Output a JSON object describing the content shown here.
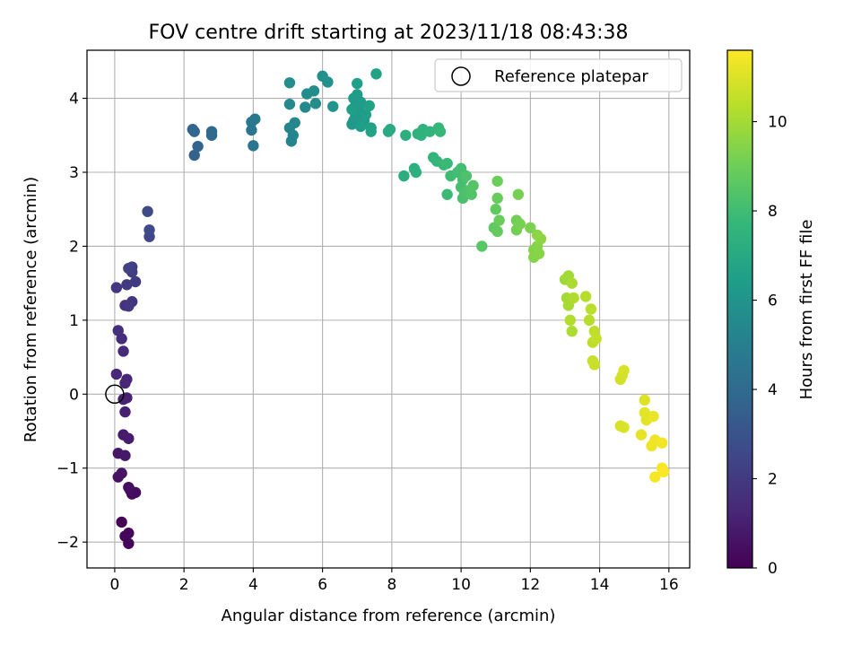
{
  "chart_data": {
    "type": "scatter",
    "title": "FOV centre drift starting at 2023/11/18 08:43:38",
    "xlabel": "Angular distance from reference (arcmin)",
    "ylabel": "Rotation from reference (arcmin)",
    "xlim": [
      -0.8,
      16.6
    ],
    "ylim": [
      -2.35,
      4.65
    ],
    "xticks": [
      0,
      2,
      4,
      6,
      8,
      10,
      12,
      14,
      16
    ],
    "yticks": [
      -2,
      -1,
      0,
      1,
      2,
      3,
      4
    ],
    "grid": true,
    "legend": {
      "placement": "top-right",
      "entries": [
        "Reference platepar"
      ]
    },
    "reference_point": {
      "x": 0,
      "y": 0
    },
    "colorbar": {
      "label": "Hours from first FF file",
      "range": [
        0,
        11.6
      ],
      "ticks": [
        0,
        2,
        4,
        6,
        8,
        10
      ],
      "colormap": [
        "#440154",
        "#482878",
        "#3e4989",
        "#31688e",
        "#26828e",
        "#1f9e89",
        "#35b779",
        "#6ece58",
        "#b5de2b",
        "#fde725"
      ]
    },
    "series": [
      {
        "points": [
          {
            "x": 0.2,
            "y": -1.73,
            "h": 0.05
          },
          {
            "x": 0.4,
            "y": -2.02,
            "h": 0.1
          },
          {
            "x": 0.3,
            "y": -1.92,
            "h": 0.15
          },
          {
            "x": 0.4,
            "y": -1.88,
            "h": 0.2
          },
          {
            "x": 0.5,
            "y": -1.35,
            "h": 0.3
          },
          {
            "x": 0.6,
            "y": -1.33,
            "h": 0.35
          },
          {
            "x": 0.45,
            "y": -1.3,
            "h": 0.4
          },
          {
            "x": 0.4,
            "y": -1.26,
            "h": 0.45
          },
          {
            "x": 0.1,
            "y": -1.12,
            "h": 0.55
          },
          {
            "x": 0.2,
            "y": -1.07,
            "h": 0.6
          },
          {
            "x": 0.1,
            "y": -0.8,
            "h": 0.7
          },
          {
            "x": 0.3,
            "y": -0.83,
            "h": 0.75
          },
          {
            "x": 0.25,
            "y": -0.55,
            "h": 0.85
          },
          {
            "x": 0.4,
            "y": -0.6,
            "h": 0.9
          },
          {
            "x": 0.3,
            "y": -0.24,
            "h": 1.0
          },
          {
            "x": 0.35,
            "y": -0.05,
            "h": 1.05
          },
          {
            "x": 0.25,
            "y": -0.07,
            "h": 1.1
          },
          {
            "x": 0.3,
            "y": 0.15,
            "h": 1.2
          },
          {
            "x": 0.35,
            "y": 0.2,
            "h": 1.25
          },
          {
            "x": 0.05,
            "y": 0.27,
            "h": 1.3
          },
          {
            "x": 0.25,
            "y": 0.58,
            "h": 1.4
          },
          {
            "x": 0.2,
            "y": 0.75,
            "h": 1.5
          },
          {
            "x": 0.1,
            "y": 0.86,
            "h": 1.55
          },
          {
            "x": 0.3,
            "y": 1.2,
            "h": 1.7
          },
          {
            "x": 0.5,
            "y": 1.25,
            "h": 1.8
          },
          {
            "x": 0.4,
            "y": 1.19,
            "h": 1.85
          },
          {
            "x": 0.05,
            "y": 1.44,
            "h": 1.9
          },
          {
            "x": 0.35,
            "y": 1.48,
            "h": 2.0
          },
          {
            "x": 0.6,
            "y": 1.52,
            "h": 2.05
          },
          {
            "x": 0.5,
            "y": 1.65,
            "h": 2.15
          },
          {
            "x": 0.5,
            "y": 1.72,
            "h": 2.2
          },
          {
            "x": 0.4,
            "y": 1.7,
            "h": 2.25
          },
          {
            "x": 1.0,
            "y": 2.13,
            "h": 2.5
          },
          {
            "x": 1.0,
            "y": 2.22,
            "h": 2.6
          },
          {
            "x": 0.95,
            "y": 2.47,
            "h": 2.7
          },
          {
            "x": 2.3,
            "y": 3.23,
            "h": 3.6
          },
          {
            "x": 2.4,
            "y": 3.35,
            "h": 3.7
          },
          {
            "x": 2.25,
            "y": 3.58,
            "h": 3.75
          },
          {
            "x": 2.3,
            "y": 3.55,
            "h": 3.8
          },
          {
            "x": 2.8,
            "y": 3.5,
            "h": 3.9
          },
          {
            "x": 2.8,
            "y": 3.55,
            "h": 3.95
          },
          {
            "x": 4.0,
            "y": 3.36,
            "h": 4.5
          },
          {
            "x": 3.95,
            "y": 3.57,
            "h": 4.55
          },
          {
            "x": 3.95,
            "y": 3.68,
            "h": 4.6
          },
          {
            "x": 4.05,
            "y": 3.72,
            "h": 4.65
          },
          {
            "x": 5.1,
            "y": 3.42,
            "h": 5.2
          },
          {
            "x": 5.15,
            "y": 3.5,
            "h": 5.25
          },
          {
            "x": 5.05,
            "y": 3.6,
            "h": 5.3
          },
          {
            "x": 5.2,
            "y": 3.67,
            "h": 5.35
          },
          {
            "x": 5.5,
            "y": 3.88,
            "h": 5.5
          },
          {
            "x": 5.05,
            "y": 3.92,
            "h": 5.45
          },
          {
            "x": 5.55,
            "y": 4.06,
            "h": 5.6
          },
          {
            "x": 5.75,
            "y": 4.1,
            "h": 5.65
          },
          {
            "x": 5.8,
            "y": 3.93,
            "h": 5.7
          },
          {
            "x": 5.05,
            "y": 4.21,
            "h": 5.75
          },
          {
            "x": 6.0,
            "y": 4.3,
            "h": 5.8
          },
          {
            "x": 6.15,
            "y": 4.22,
            "h": 5.85
          },
          {
            "x": 6.3,
            "y": 3.89,
            "h": 6.0
          },
          {
            "x": 6.85,
            "y": 3.65,
            "h": 6.2
          },
          {
            "x": 6.9,
            "y": 3.7,
            "h": 6.22
          },
          {
            "x": 6.95,
            "y": 3.75,
            "h": 6.25
          },
          {
            "x": 7.0,
            "y": 3.8,
            "h": 6.27
          },
          {
            "x": 7.05,
            "y": 3.85,
            "h": 6.3
          },
          {
            "x": 6.95,
            "y": 3.9,
            "h": 6.32
          },
          {
            "x": 7.1,
            "y": 3.95,
            "h": 6.35
          },
          {
            "x": 6.9,
            "y": 4.0,
            "h": 6.37
          },
          {
            "x": 7.0,
            "y": 4.05,
            "h": 6.4
          },
          {
            "x": 7.2,
            "y": 3.7,
            "h": 6.42
          },
          {
            "x": 7.1,
            "y": 3.62,
            "h": 6.45
          },
          {
            "x": 7.25,
            "y": 3.78,
            "h": 6.47
          },
          {
            "x": 6.85,
            "y": 3.85,
            "h": 6.5
          },
          {
            "x": 7.0,
            "y": 4.2,
            "h": 6.55
          },
          {
            "x": 7.35,
            "y": 3.9,
            "h": 6.6
          },
          {
            "x": 7.4,
            "y": 3.6,
            "h": 6.62
          },
          {
            "x": 7.4,
            "y": 3.55,
            "h": 6.65
          },
          {
            "x": 7.55,
            "y": 4.33,
            "h": 6.7
          },
          {
            "x": 7.9,
            "y": 3.55,
            "h": 7.0
          },
          {
            "x": 7.95,
            "y": 3.58,
            "h": 7.05
          },
          {
            "x": 8.35,
            "y": 2.95,
            "h": 7.2
          },
          {
            "x": 8.4,
            "y": 3.5,
            "h": 7.25
          },
          {
            "x": 8.65,
            "y": 3.05,
            "h": 7.3
          },
          {
            "x": 8.7,
            "y": 3.0,
            "h": 7.35
          },
          {
            "x": 8.75,
            "y": 3.52,
            "h": 7.4
          },
          {
            "x": 8.85,
            "y": 3.5,
            "h": 7.45
          },
          {
            "x": 8.9,
            "y": 3.58,
            "h": 7.5
          },
          {
            "x": 9.1,
            "y": 3.55,
            "h": 7.55
          },
          {
            "x": 9.2,
            "y": 3.2,
            "h": 7.6
          },
          {
            "x": 9.3,
            "y": 3.15,
            "h": 7.65
          },
          {
            "x": 9.35,
            "y": 3.6,
            "h": 7.7
          },
          {
            "x": 9.4,
            "y": 3.55,
            "h": 7.75
          },
          {
            "x": 9.5,
            "y": 3.1,
            "h": 7.8
          },
          {
            "x": 9.6,
            "y": 3.12,
            "h": 7.85
          },
          {
            "x": 9.6,
            "y": 2.7,
            "h": 7.9
          },
          {
            "x": 9.7,
            "y": 2.95,
            "h": 7.95
          },
          {
            "x": 9.9,
            "y": 3.0,
            "h": 8.0
          },
          {
            "x": 10.0,
            "y": 3.05,
            "h": 8.05
          },
          {
            "x": 10.0,
            "y": 2.8,
            "h": 8.1
          },
          {
            "x": 10.05,
            "y": 2.9,
            "h": 8.15
          },
          {
            "x": 10.05,
            "y": 2.65,
            "h": 8.2
          },
          {
            "x": 10.1,
            "y": 2.72,
            "h": 8.25
          },
          {
            "x": 10.15,
            "y": 2.95,
            "h": 8.3
          },
          {
            "x": 10.2,
            "y": 2.75,
            "h": 8.35
          },
          {
            "x": 10.3,
            "y": 2.7,
            "h": 8.4
          },
          {
            "x": 10.35,
            "y": 2.82,
            "h": 8.45
          },
          {
            "x": 10.6,
            "y": 2.0,
            "h": 8.55
          },
          {
            "x": 10.95,
            "y": 2.25,
            "h": 8.7
          },
          {
            "x": 11.0,
            "y": 2.5,
            "h": 8.75
          },
          {
            "x": 11.05,
            "y": 2.2,
            "h": 8.8
          },
          {
            "x": 11.05,
            "y": 2.65,
            "h": 8.85
          },
          {
            "x": 11.1,
            "y": 2.35,
            "h": 8.9
          },
          {
            "x": 11.05,
            "y": 2.88,
            "h": 8.95
          },
          {
            "x": 11.6,
            "y": 2.35,
            "h": 9.05
          },
          {
            "x": 11.6,
            "y": 2.22,
            "h": 9.1
          },
          {
            "x": 11.65,
            "y": 2.7,
            "h": 9.15
          },
          {
            "x": 11.7,
            "y": 2.3,
            "h": 9.2
          },
          {
            "x": 12.0,
            "y": 2.25,
            "h": 9.3
          },
          {
            "x": 12.1,
            "y": 1.95,
            "h": 9.35
          },
          {
            "x": 12.1,
            "y": 1.85,
            "h": 9.4
          },
          {
            "x": 12.2,
            "y": 2.0,
            "h": 9.45
          },
          {
            "x": 12.25,
            "y": 1.9,
            "h": 9.5
          },
          {
            "x": 12.2,
            "y": 2.15,
            "h": 9.55
          },
          {
            "x": 12.3,
            "y": 2.1,
            "h": 9.6
          },
          {
            "x": 13.0,
            "y": 1.55,
            "h": 9.9
          },
          {
            "x": 13.1,
            "y": 1.6,
            "h": 9.95
          },
          {
            "x": 13.05,
            "y": 1.3,
            "h": 10.0
          },
          {
            "x": 13.1,
            "y": 1.2,
            "h": 10.05
          },
          {
            "x": 13.2,
            "y": 1.5,
            "h": 10.1
          },
          {
            "x": 13.2,
            "y": 0.85,
            "h": 10.15
          },
          {
            "x": 13.25,
            "y": 1.3,
            "h": 10.2
          },
          {
            "x": 13.15,
            "y": 1.0,
            "h": 10.25
          },
          {
            "x": 13.6,
            "y": 1.32,
            "h": 10.3
          },
          {
            "x": 13.7,
            "y": 1.0,
            "h": 10.35
          },
          {
            "x": 13.75,
            "y": 1.15,
            "h": 10.4
          },
          {
            "x": 13.8,
            "y": 0.7,
            "h": 10.45
          },
          {
            "x": 13.85,
            "y": 0.85,
            "h": 10.5
          },
          {
            "x": 13.9,
            "y": 0.75,
            "h": 10.55
          },
          {
            "x": 13.8,
            "y": 0.45,
            "h": 10.6
          },
          {
            "x": 13.85,
            "y": 0.4,
            "h": 10.65
          },
          {
            "x": 14.6,
            "y": 0.2,
            "h": 10.8
          },
          {
            "x": 14.65,
            "y": 0.25,
            "h": 10.85
          },
          {
            "x": 14.7,
            "y": 0.32,
            "h": 10.9
          },
          {
            "x": 14.6,
            "y": -0.43,
            "h": 10.95
          },
          {
            "x": 14.7,
            "y": -0.45,
            "h": 11.0
          },
          {
            "x": 15.3,
            "y": -0.08,
            "h": 11.05
          },
          {
            "x": 15.3,
            "y": -0.25,
            "h": 11.1
          },
          {
            "x": 15.35,
            "y": -0.35,
            "h": 11.15
          },
          {
            "x": 15.2,
            "y": -0.55,
            "h": 11.2
          },
          {
            "x": 15.55,
            "y": -0.3,
            "h": 11.25
          },
          {
            "x": 15.5,
            "y": -0.7,
            "h": 11.3
          },
          {
            "x": 15.6,
            "y": -0.62,
            "h": 11.35
          },
          {
            "x": 15.8,
            "y": -0.66,
            "h": 11.4
          },
          {
            "x": 15.6,
            "y": -1.12,
            "h": 11.45
          },
          {
            "x": 15.8,
            "y": -1.0,
            "h": 11.5
          },
          {
            "x": 15.85,
            "y": -1.05,
            "h": 11.55
          }
        ]
      }
    ]
  }
}
